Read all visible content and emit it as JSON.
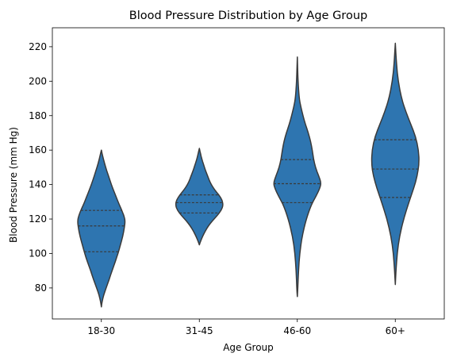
{
  "chart_data": {
    "type": "violin",
    "title": "Blood Pressure Distribution by Age Group",
    "xlabel": "Age Group",
    "ylabel": "Blood Pressure (mm Hg)",
    "ylim": [
      62,
      231
    ],
    "yticks": [
      80,
      100,
      120,
      140,
      160,
      180,
      200,
      220
    ],
    "grid": false,
    "categories": [
      "18-30",
      "31-45",
      "46-60",
      "60+"
    ],
    "colors": {
      "fill": "#2e75b0",
      "edge": "#3a3a3a"
    },
    "groups": [
      {
        "category": "18-30",
        "quartiles": [
          101,
          116,
          125
        ],
        "profile": [
          [
            69,
            0
          ],
          [
            72,
            0.03
          ],
          [
            76,
            0.1
          ],
          [
            80,
            0.2
          ],
          [
            85,
            0.33
          ],
          [
            90,
            0.45
          ],
          [
            95,
            0.58
          ],
          [
            100,
            0.7
          ],
          [
            105,
            0.8
          ],
          [
            110,
            0.9
          ],
          [
            115,
            0.97
          ],
          [
            119,
            1.0
          ],
          [
            122,
            0.95
          ],
          [
            126,
            0.83
          ],
          [
            130,
            0.7
          ],
          [
            135,
            0.56
          ],
          [
            140,
            0.42
          ],
          [
            145,
            0.3
          ],
          [
            150,
            0.18
          ],
          [
            155,
            0.08
          ],
          [
            160,
            0
          ]
        ]
      },
      {
        "category": "31-45",
        "quartiles": [
          123.5,
          129.5,
          134
        ],
        "profile": [
          [
            105,
            0
          ],
          [
            107,
            0.05
          ],
          [
            110,
            0.14
          ],
          [
            113,
            0.25
          ],
          [
            116,
            0.38
          ],
          [
            119,
            0.55
          ],
          [
            122,
            0.75
          ],
          [
            125,
            0.92
          ],
          [
            128,
            1.0
          ],
          [
            131,
            0.96
          ],
          [
            134,
            0.82
          ],
          [
            137,
            0.64
          ],
          [
            140,
            0.5
          ],
          [
            143,
            0.4
          ],
          [
            146,
            0.32
          ],
          [
            149,
            0.24
          ],
          [
            152,
            0.17
          ],
          [
            155,
            0.1
          ],
          [
            158,
            0.05
          ],
          [
            161,
            0
          ]
        ]
      },
      {
        "category": "46-60",
        "quartiles": [
          129.5,
          140.5,
          154.5
        ],
        "profile": [
          [
            75,
            0
          ],
          [
            80,
            0.02
          ],
          [
            90,
            0.05
          ],
          [
            100,
            0.1
          ],
          [
            110,
            0.2
          ],
          [
            120,
            0.38
          ],
          [
            128,
            0.58
          ],
          [
            133,
            0.78
          ],
          [
            138,
            0.95
          ],
          [
            141,
            1.0
          ],
          [
            145,
            0.9
          ],
          [
            150,
            0.76
          ],
          [
            155,
            0.68
          ],
          [
            160,
            0.63
          ],
          [
            165,
            0.56
          ],
          [
            170,
            0.46
          ],
          [
            175,
            0.34
          ],
          [
            180,
            0.24
          ],
          [
            185,
            0.15
          ],
          [
            190,
            0.08
          ],
          [
            200,
            0.03
          ],
          [
            214,
            0
          ]
        ]
      },
      {
        "category": "60+",
        "quartiles": [
          132.5,
          149,
          166
        ],
        "profile": [
          [
            82,
            0
          ],
          [
            90,
            0.03
          ],
          [
            100,
            0.08
          ],
          [
            110,
            0.18
          ],
          [
            120,
            0.35
          ],
          [
            130,
            0.58
          ],
          [
            138,
            0.78
          ],
          [
            145,
            0.92
          ],
          [
            152,
            1.0
          ],
          [
            160,
            0.98
          ],
          [
            168,
            0.85
          ],
          [
            175,
            0.65
          ],
          [
            182,
            0.45
          ],
          [
            190,
            0.26
          ],
          [
            200,
            0.12
          ],
          [
            210,
            0.05
          ],
          [
            222,
            0
          ]
        ]
      }
    ]
  }
}
